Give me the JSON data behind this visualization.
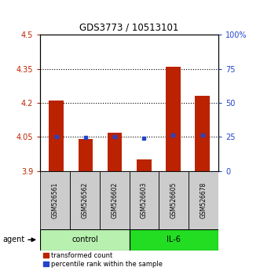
{
  "title": "GDS3773 / 10513101",
  "samples": [
    "GSM526561",
    "GSM526562",
    "GSM526602",
    "GSM526603",
    "GSM526605",
    "GSM526678"
  ],
  "red_values": [
    4.21,
    4.04,
    4.07,
    3.95,
    4.36,
    4.23
  ],
  "blue_values": [
    4.051,
    4.048,
    4.051,
    4.046,
    4.057,
    4.057
  ],
  "baseline": 3.9,
  "ylim_left": [
    3.9,
    4.5
  ],
  "ylim_right": [
    0,
    100
  ],
  "yticks_left": [
    3.9,
    4.05,
    4.2,
    4.35,
    4.5
  ],
  "ytick_labels_left": [
    "3.9",
    "4.05",
    "4.2",
    "4.35",
    "4.5"
  ],
  "yticks_right": [
    0,
    25,
    50,
    75,
    100
  ],
  "ytick_labels_right": [
    "0",
    "25",
    "50",
    "75",
    "100%"
  ],
  "hlines": [
    4.05,
    4.2,
    4.35
  ],
  "control_label": "control",
  "il6_label": "IL-6",
  "agent_label": "agent",
  "control_indices": [
    0,
    1,
    2
  ],
  "il6_indices": [
    3,
    4,
    5
  ],
  "red_color": "#bb2200",
  "blue_color": "#2244cc",
  "control_bg": "#b8f0b0",
  "il6_bg": "#22dd22",
  "sample_bg": "#cccccc",
  "bar_width": 0.5,
  "legend_red": "transformed count",
  "legend_blue": "percentile rank within the sample"
}
